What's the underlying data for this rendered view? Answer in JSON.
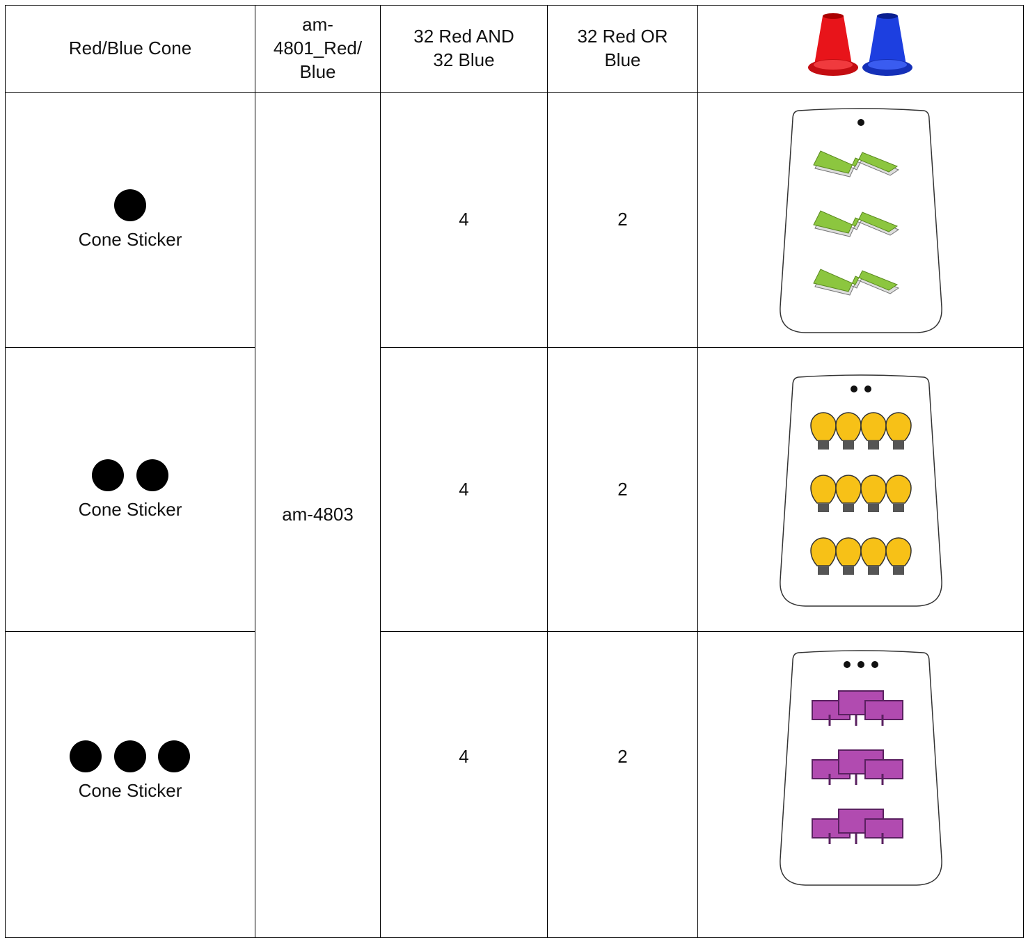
{
  "table": {
    "header": {
      "name": "Red/Blue Cone",
      "part_number": [
        "am-",
        "4801_Red/",
        "Blue"
      ],
      "qty_and": "32 Red AND 32 Blue",
      "qty_or": "32 Red OR Blue"
    },
    "shared_part_number": "am-4803",
    "rows": [
      {
        "name": "Cone Sticker",
        "qty_and": 4,
        "qty_or": 2
      },
      {
        "name": "Cone Sticker",
        "qty_and": 4,
        "qty_or": 2
      },
      {
        "name": "Cone Sticker",
        "qty_and": 4,
        "qty_or": 2
      }
    ]
  }
}
